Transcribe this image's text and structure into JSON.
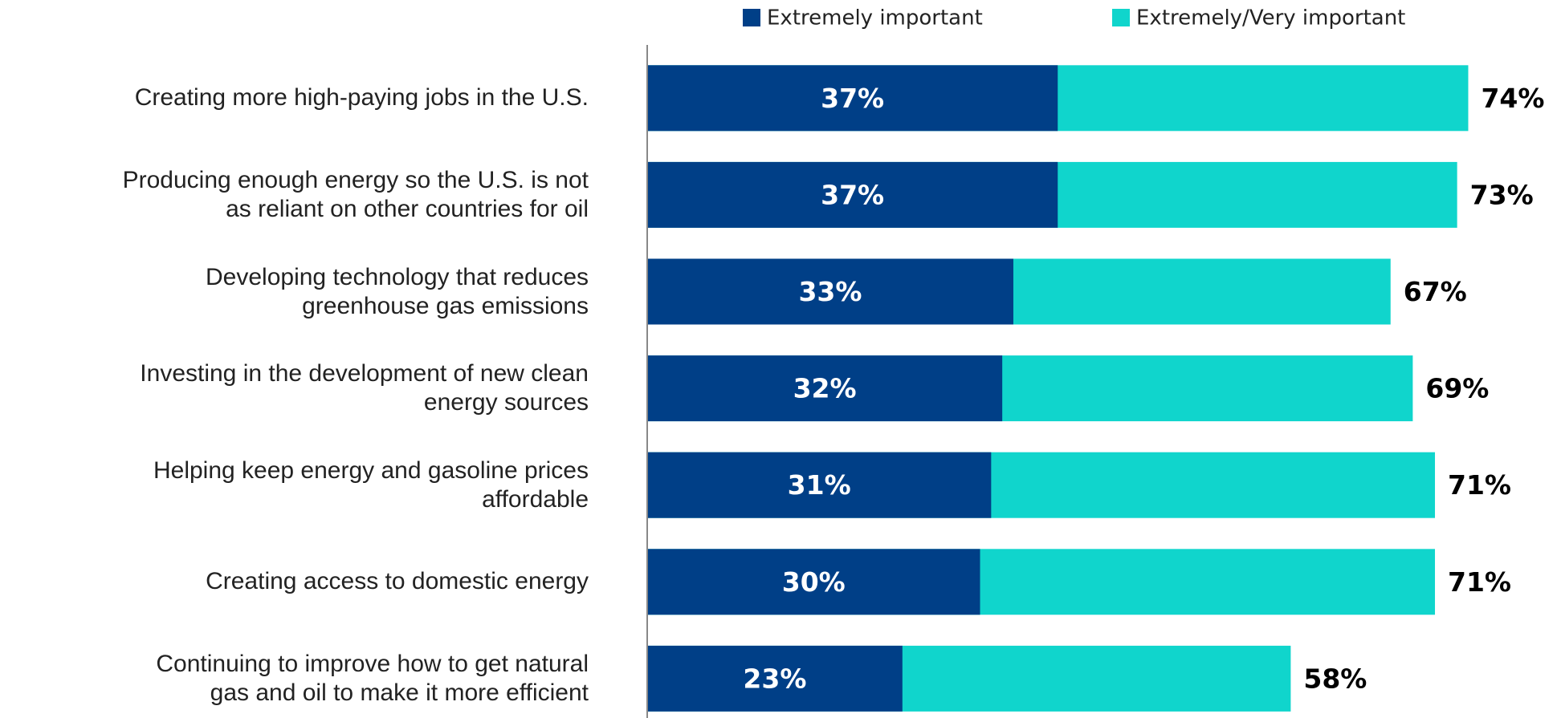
{
  "chart_data": {
    "type": "bar",
    "orientation": "horizontal",
    "overlap": true,
    "categories": [
      "Creating more high-paying jobs in the U.S.",
      "Producing enough energy so the U.S. is not\nas reliant on other countries for oil",
      "Developing technology that reduces\ngreenhouse gas emissions",
      "Investing in the development of new clean\nenergy sources",
      "Helping keep energy and gasoline prices\naffordable",
      "Creating access to domestic energy",
      "Continuing to improve how to get natural\ngas and oil to make it more efficient"
    ],
    "series": [
      {
        "name": "Extremely important",
        "color": "#003f87",
        "values": [
          37,
          37,
          33,
          32,
          31,
          30,
          23
        ],
        "value_labels": [
          "37%",
          "37%",
          "33%",
          "32%",
          "31%",
          "30%",
          "23%"
        ]
      },
      {
        "name": "Extremely/Very important",
        "color": "#10d5cc",
        "values": [
          74,
          73,
          67,
          69,
          71,
          71,
          58
        ],
        "value_labels": [
          "74%",
          "73%",
          "67%",
          "69%",
          "71%",
          "71%",
          "58%"
        ]
      }
    ],
    "xlim": [
      0,
      82
    ],
    "legend": "top"
  }
}
